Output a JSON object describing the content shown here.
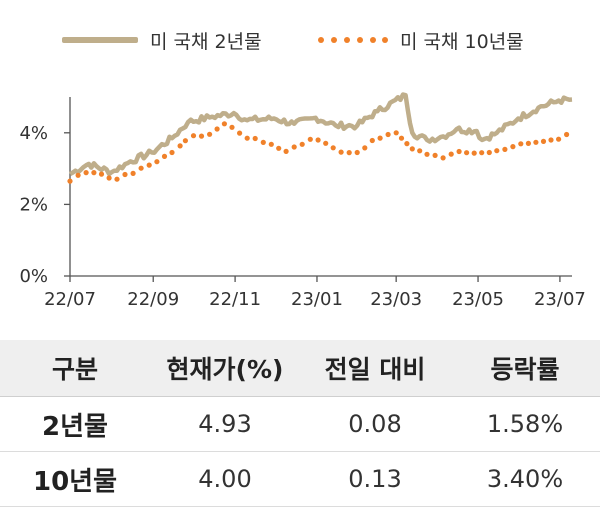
{
  "legend": {
    "items": [
      {
        "label": "미 국채 2년물",
        "style": "solid",
        "color": "#bfae8b"
      },
      {
        "label": "미 국채 10년물",
        "style": "dotted",
        "color": "#f0812a"
      }
    ]
  },
  "chart_data": {
    "type": "line",
    "title": "",
    "xlabel": "",
    "ylabel": "",
    "x_ticks": [
      "22/07",
      "22/09",
      "22/11",
      "23/01",
      "23/03",
      "23/05",
      "23/07"
    ],
    "y_ticks": [
      "0%",
      "2%",
      "4%"
    ],
    "ylim": [
      0,
      5
    ],
    "xlim": [
      "2022-07-01",
      "2023-07-10"
    ],
    "grid": false,
    "legend_position": "top",
    "series": [
      {
        "name": "미 국채 2년물",
        "color": "#bfae8b",
        "style": "solid",
        "points": [
          [
            "2022-07-01",
            2.85
          ],
          [
            "2022-07-15",
            3.13
          ],
          [
            "2022-08-01",
            2.9
          ],
          [
            "2022-08-15",
            3.2
          ],
          [
            "2022-08-31",
            3.45
          ],
          [
            "2022-09-15",
            3.85
          ],
          [
            "2022-09-27",
            4.3
          ],
          [
            "2022-10-15",
            4.45
          ],
          [
            "2022-10-31",
            4.55
          ],
          [
            "2022-11-10",
            4.35
          ],
          [
            "2022-11-30",
            4.4
          ],
          [
            "2022-12-15",
            4.25
          ],
          [
            "2022-12-31",
            4.42
          ],
          [
            "2023-01-15",
            4.2
          ],
          [
            "2023-01-31",
            4.2
          ],
          [
            "2023-02-15",
            4.6
          ],
          [
            "2023-03-08",
            5.05
          ],
          [
            "2023-03-13",
            4.0
          ],
          [
            "2023-03-24",
            3.8
          ],
          [
            "2023-04-05",
            3.9
          ],
          [
            "2023-04-15",
            4.1
          ],
          [
            "2023-04-30",
            4.05
          ],
          [
            "2023-05-04",
            3.8
          ],
          [
            "2023-05-15",
            4.0
          ],
          [
            "2023-05-31",
            4.4
          ],
          [
            "2023-06-15",
            4.7
          ],
          [
            "2023-06-30",
            4.9
          ],
          [
            "2023-07-10",
            4.93
          ]
        ]
      },
      {
        "name": "미 국채 10년물",
        "color": "#f0812a",
        "style": "dotted",
        "points": [
          [
            "2022-07-01",
            2.65
          ],
          [
            "2022-07-15",
            2.95
          ],
          [
            "2022-08-01",
            2.7
          ],
          [
            "2022-08-15",
            2.85
          ],
          [
            "2022-08-31",
            3.15
          ],
          [
            "2022-09-15",
            3.45
          ],
          [
            "2022-09-27",
            3.85
          ],
          [
            "2022-10-15",
            4.0
          ],
          [
            "2022-10-24",
            4.25
          ],
          [
            "2022-11-10",
            3.85
          ],
          [
            "2022-11-30",
            3.7
          ],
          [
            "2022-12-07",
            3.45
          ],
          [
            "2022-12-31",
            3.88
          ],
          [
            "2023-01-15",
            3.5
          ],
          [
            "2023-01-31",
            3.45
          ],
          [
            "2023-02-15",
            3.85
          ],
          [
            "2023-03-01",
            4.0
          ],
          [
            "2023-03-13",
            3.55
          ],
          [
            "2023-03-24",
            3.4
          ],
          [
            "2023-04-05",
            3.3
          ],
          [
            "2023-04-15",
            3.5
          ],
          [
            "2023-04-30",
            3.45
          ],
          [
            "2023-05-15",
            3.5
          ],
          [
            "2023-05-31",
            3.65
          ],
          [
            "2023-06-15",
            3.75
          ],
          [
            "2023-06-30",
            3.82
          ],
          [
            "2023-07-10",
            4.0
          ]
        ]
      }
    ]
  },
  "table": {
    "headers": [
      "구분",
      "현재가(%)",
      "전일 대비",
      "등락률"
    ],
    "rows": [
      [
        "2년물",
        "4.93",
        "0.08",
        "1.58%"
      ],
      [
        "10년물",
        "4.00",
        "0.13",
        "3.40%"
      ]
    ]
  }
}
